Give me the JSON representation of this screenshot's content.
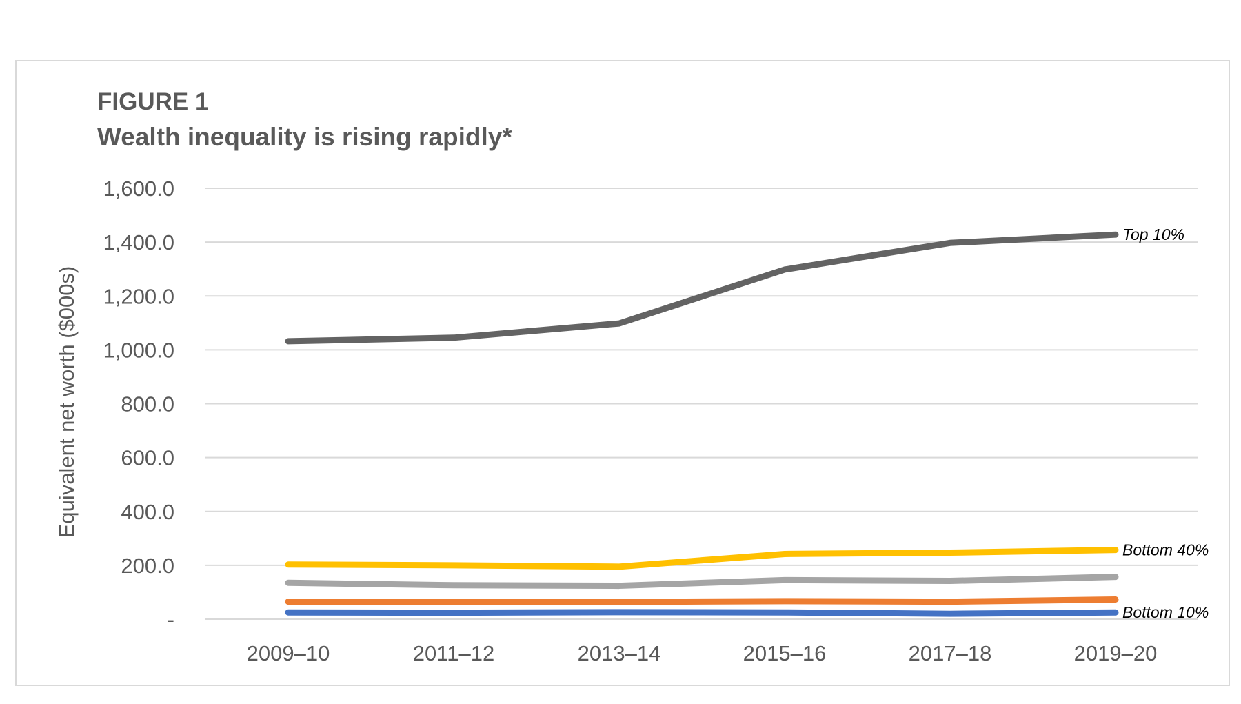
{
  "figure_label": "FIGURE 1",
  "chart_data": {
    "type": "line",
    "title": "Wealth inequality is rising rapidly*",
    "ylabel": "Equivalent net worth ($000s)",
    "xlabel": "",
    "categories": [
      "2009–10",
      "2011–12",
      "2013–14",
      "2015–16",
      "2017–18",
      "2019–20"
    ],
    "ylim": [
      0,
      1600
    ],
    "yticks": [
      0,
      200,
      400,
      600,
      800,
      1000,
      1200,
      1400,
      1600
    ],
    "ytick_labels": [
      "-",
      "200.0",
      "400.0",
      "600.0",
      "800.0",
      "1,000.0",
      "1,200.0",
      "1,400.0",
      "1,600.0"
    ],
    "grid": true,
    "series": [
      {
        "name": "Top 10%",
        "color": "#636363",
        "values": [
          1032,
          1045,
          1098,
          1298,
          1397,
          1428
        ]
      },
      {
        "name": "Bottom 40%",
        "color": "#ffc000",
        "values": [
          203,
          200,
          195,
          242,
          247,
          257
        ]
      },
      {
        "color": "#a5a5a5",
        "values": [
          135,
          126,
          124,
          145,
          142,
          157
        ]
      },
      {
        "color": "#ed7d31",
        "values": [
          65,
          63,
          64,
          67,
          65,
          73
        ]
      },
      {
        "name": "Bottom 10%",
        "color": "#4472c4",
        "values": [
          25,
          24,
          26,
          25,
          20,
          25
        ]
      }
    ]
  }
}
